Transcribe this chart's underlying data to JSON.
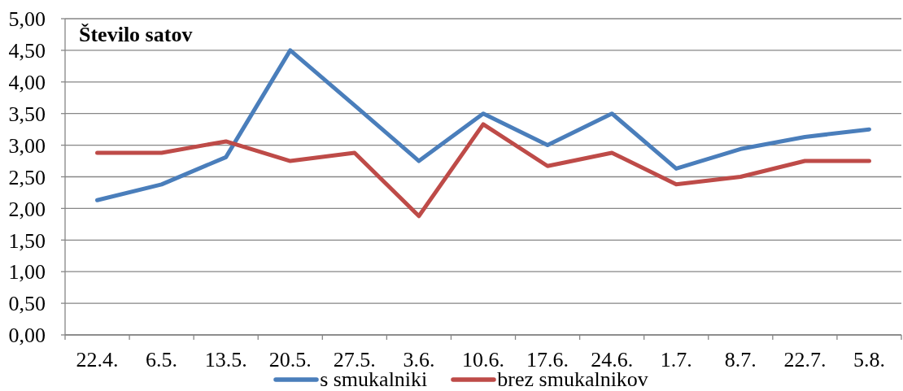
{
  "chart_data": {
    "type": "line",
    "ylabel": "Število satov",
    "categories": [
      "22.4.",
      "6.5.",
      "13.5.",
      "20.5.",
      "27.5.",
      "3.6.",
      "10.6.",
      "17.6.",
      "24.6.",
      "1.7.",
      "8.7.",
      "22.7.",
      "5.8."
    ],
    "series": [
      {
        "name": "s smukalniki",
        "color": "#4a7ebb",
        "values": [
          2.13,
          2.38,
          2.81,
          4.5,
          3.63,
          2.75,
          3.5,
          3.0,
          3.5,
          2.63,
          2.94,
          3.13,
          3.25
        ]
      },
      {
        "name": "brez smukalnikov",
        "color": "#be4b48",
        "values": [
          2.88,
          2.88,
          3.06,
          2.75,
          2.88,
          1.88,
          3.33,
          2.67,
          2.88,
          2.38,
          2.5,
          2.75,
          2.75
        ]
      }
    ],
    "ylim": [
      0,
      5
    ],
    "yticks": [
      {
        "value": 0,
        "label": "0,00"
      },
      {
        "value": 0.5,
        "label": "0,50"
      },
      {
        "value": 1,
        "label": "1,00"
      },
      {
        "value": 1.5,
        "label": "1,50"
      },
      {
        "value": 2,
        "label": "2,00"
      },
      {
        "value": 2.5,
        "label": "2,50"
      },
      {
        "value": 3,
        "label": "3,00"
      },
      {
        "value": 3.5,
        "label": "3,50"
      },
      {
        "value": 4,
        "label": "4,00"
      },
      {
        "value": 4.5,
        "label": "4,50"
      },
      {
        "value": 5,
        "label": "5,00"
      }
    ],
    "grid": "y",
    "legend": "bottom"
  }
}
